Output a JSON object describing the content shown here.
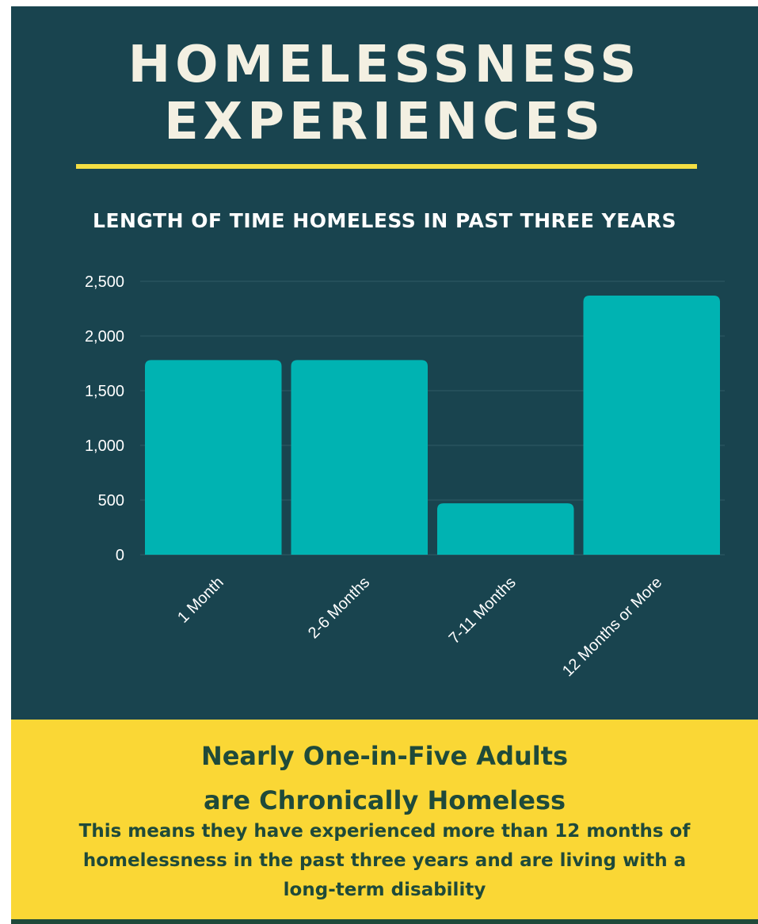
{
  "title_line1": "HOMELESSNESS",
  "title_line2": "EXPERIENCES",
  "chart_data": {
    "type": "bar",
    "title": "LENGTH OF TIME HOMELESS IN PAST THREE YEARS",
    "xlabel": "",
    "ylabel": "",
    "categories": [
      "1 Month",
      "2-6 Months",
      "7-11 Months",
      "12 Months or More"
    ],
    "values": [
      1780,
      1780,
      470,
      2370
    ],
    "ylim": [
      0,
      2500
    ],
    "yticks": [
      0,
      500,
      1000,
      1500,
      2000,
      2500
    ],
    "ytick_labels": [
      "0",
      "500",
      "1,000",
      "1,500",
      "2,000",
      "2,500"
    ],
    "grid": true,
    "bar_color": "#00b3b2"
  },
  "footer": {
    "headline_line1": "Nearly One-in-Five Adults",
    "headline_line2": "are Chronically Homeless",
    "body_line1": "This means they have experienced more than 12 months of",
    "body_line2": "homelessness in the past three years and are living with a",
    "body_line3": "long-term disability"
  },
  "colors": {
    "panel_background": "#19444f",
    "accent_yellow": "#f4de43",
    "footer_background": "#fad735",
    "footer_text": "#1f4a3a",
    "bar": "#00b3b2"
  }
}
